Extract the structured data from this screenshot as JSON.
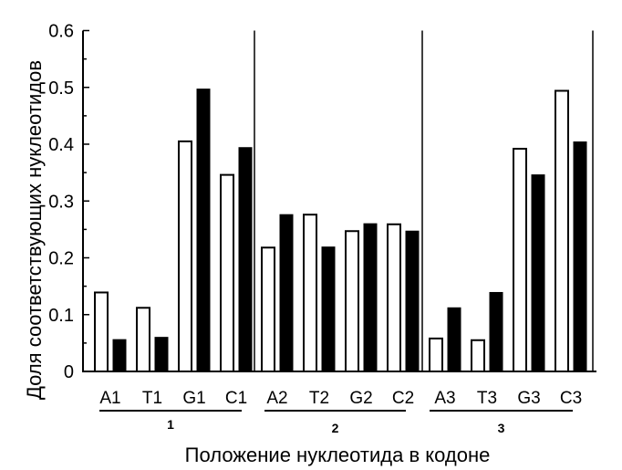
{
  "chart_data": {
    "type": "bar",
    "title": "",
    "xlabel": "Положение нуклеотида в кодоне",
    "ylabel": "Доля соответствующих нуклеотидов",
    "ylim": [
      0,
      0.6
    ],
    "yticks": [
      "0",
      "0.1",
      "0.2",
      "0.3",
      "0.4",
      "0.5",
      "0.6"
    ],
    "grid": false,
    "legend": null,
    "groups": [
      {
        "label": "1",
        "categories": [
          "A1",
          "T1",
          "G1",
          "C1"
        ]
      },
      {
        "label": "2",
        "categories": [
          "A2",
          "T2",
          "G2",
          "C2"
        ]
      },
      {
        "label": "3",
        "categories": [
          "A3",
          "T3",
          "G3",
          "C3"
        ]
      }
    ],
    "categories": [
      "A1",
      "T1",
      "G1",
      "C1",
      "A2",
      "T2",
      "G2",
      "C2",
      "A3",
      "T3",
      "G3",
      "C3"
    ],
    "series": [
      {
        "name": "white (open) bars",
        "color": "#ffffff",
        "values": [
          0.139,
          0.112,
          0.405,
          0.346,
          0.218,
          0.276,
          0.247,
          0.259,
          0.058,
          0.055,
          0.392,
          0.494
        ]
      },
      {
        "name": "black (filled) bars",
        "color": "#000000",
        "values": [
          0.056,
          0.06,
          0.497,
          0.394,
          0.276,
          0.219,
          0.26,
          0.247,
          0.112,
          0.139,
          0.346,
          0.404
        ]
      }
    ]
  }
}
